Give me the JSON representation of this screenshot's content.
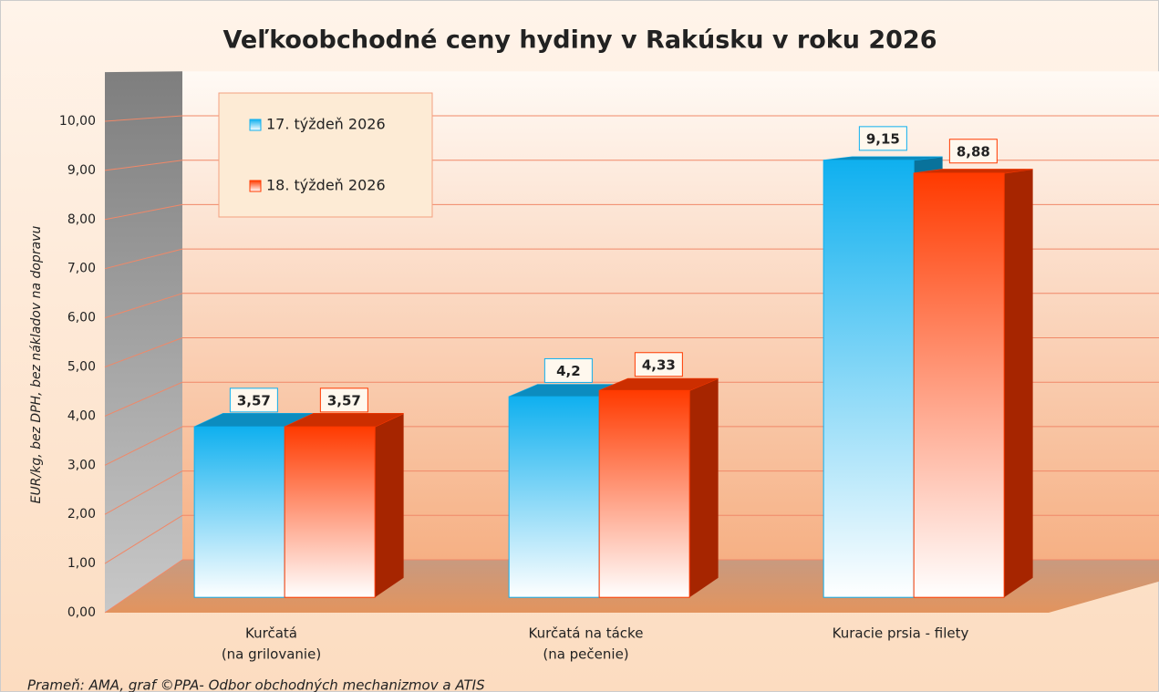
{
  "chart_data": {
    "type": "bar3d",
    "title": "Veľkoobchodné ceny hydiny v Rakúsku v roku 2026",
    "y_label": "EUR/kg, bez DPH, bez nákladov na dopravu",
    "source": "Prameň: AMA, graf ©PPA- Odbor obchodných mechanizmov a ATIS",
    "categories": [
      [
        "Kurčatá",
        "(na grilovanie)"
      ],
      [
        "Kurčatá na tácke",
        "(na pečenie)"
      ],
      [
        "Kuracie prsia - filety"
      ]
    ],
    "series": [
      {
        "name": "17. týždeň 2026",
        "color": "#0fb0ef",
        "values": [
          3.57,
          4.2,
          9.15
        ],
        "value_labels": [
          "3,57",
          "4,2",
          "9,15"
        ]
      },
      {
        "name": "18. týždeň 2026",
        "color": "#ff3a00",
        "values": [
          3.57,
          4.33,
          8.88
        ],
        "value_labels": [
          "3,57",
          "4,33",
          "8,88"
        ]
      }
    ],
    "ylim": [
      0,
      11
    ],
    "yticks": [
      {
        "value": 0,
        "label": "0,00"
      },
      {
        "value": 1,
        "label": "1,00"
      },
      {
        "value": 2,
        "label": "2,00"
      },
      {
        "value": 3,
        "label": "3,00"
      },
      {
        "value": 4,
        "label": "4,00"
      },
      {
        "value": 5,
        "label": "5,00"
      },
      {
        "value": 6,
        "label": "6,00"
      },
      {
        "value": 7,
        "label": "7,00"
      },
      {
        "value": 8,
        "label": "8,00"
      },
      {
        "value": 9,
        "label": "9,00"
      },
      {
        "value": 10,
        "label": "10,00"
      }
    ],
    "grid": true,
    "legend": "upper left"
  }
}
